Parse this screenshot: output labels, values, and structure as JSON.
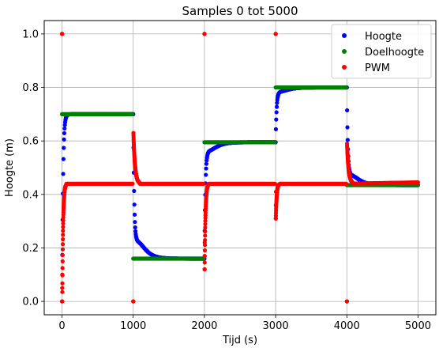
{
  "chart_data": {
    "type": "scatter",
    "title": "Samples 0 tot 5000",
    "xlabel": "Tijd (s)",
    "ylabel": "Hoogte (m)",
    "xlim": [
      -250,
      5250
    ],
    "ylim": [
      -0.05,
      1.05
    ],
    "xticks": [
      0,
      1000,
      2000,
      3000,
      4000,
      5000
    ],
    "xtick_labels": [
      "0",
      "1000",
      "2000",
      "3000",
      "4000",
      "5000"
    ],
    "yticks": [
      0.0,
      0.2,
      0.4,
      0.6,
      0.8,
      1.0
    ],
    "ytick_labels": [
      "0.0",
      "0.2",
      "0.4",
      "0.6",
      "0.8",
      "1.0"
    ],
    "grid": true,
    "legend_position": "top-right",
    "series": [
      {
        "name": "Hoogte",
        "color": "#0000ff",
        "segments": [
          {
            "start": 0,
            "end": 1000,
            "y0": 0.0,
            "target": 0.7,
            "overshoot": 0.0
          },
          {
            "start": 1000,
            "end": 2000,
            "y0": 0.7,
            "target": 0.16,
            "overshoot": 0.06
          },
          {
            "start": 2000,
            "end": 3000,
            "y0": 0.16,
            "target": 0.595,
            "overshoot": 0.03
          },
          {
            "start": 3000,
            "end": 4000,
            "y0": 0.595,
            "target": 0.8,
            "overshoot": 0.015
          },
          {
            "start": 4000,
            "end": 5000,
            "y0": 0.8,
            "target": 0.435,
            "overshoot": 0.035
          }
        ]
      },
      {
        "name": "Doelhoogte",
        "color": "#008000",
        "steps": [
          {
            "start": 0,
            "end": 1000,
            "value": 0.7
          },
          {
            "start": 1000,
            "end": 2000,
            "value": 0.16
          },
          {
            "start": 2000,
            "end": 3000,
            "value": 0.595
          },
          {
            "start": 3000,
            "end": 4000,
            "value": 0.8
          },
          {
            "start": 4000,
            "end": 5000,
            "value": 0.435
          }
        ]
      },
      {
        "name": "PWM",
        "color": "#ff0000",
        "baseline": 0.44,
        "transients": [
          {
            "time": 0,
            "peak": 1.0,
            "low": 0.0,
            "direction": "up"
          },
          {
            "time": 1000,
            "peak": 0.0,
            "high": 0.63,
            "direction": "down"
          },
          {
            "time": 2000,
            "peak": 1.0,
            "low": 0.12,
            "direction": "up"
          },
          {
            "time": 3000,
            "peak": 1.0,
            "low": 0.31,
            "direction": "up"
          },
          {
            "time": 4000,
            "peak": 0.0,
            "high": 0.59,
            "direction": "down"
          }
        ],
        "end_value": 0.445
      }
    ]
  }
}
